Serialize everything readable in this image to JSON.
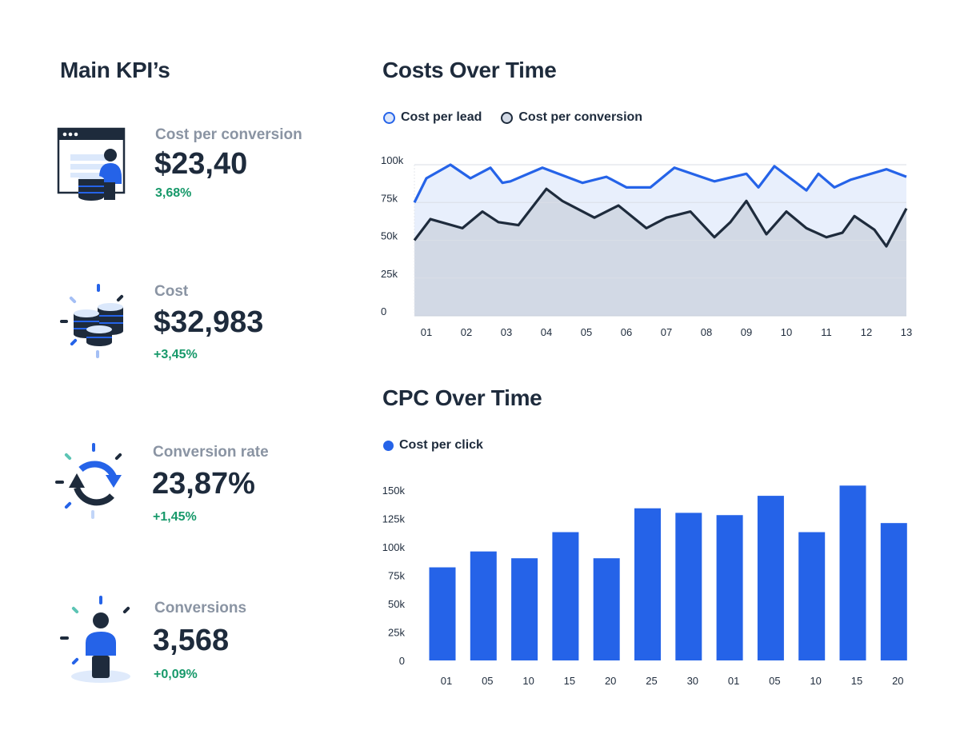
{
  "kpi_section": {
    "title": "Main KPI’s",
    "items": [
      {
        "label": "Cost per conversion",
        "value": "$23,40",
        "change": "3,68%",
        "icon": "browser-user-coins-icon"
      },
      {
        "label": "Cost",
        "value": "$32,983",
        "change": "+3,45%",
        "icon": "coin-stacks-icon"
      },
      {
        "label": "Conversion rate",
        "value": "23,87%",
        "change": "+1,45%",
        "icon": "refresh-cycle-icon"
      },
      {
        "label": "Conversions",
        "value": "3,568",
        "change": "+0,09%",
        "icon": "person-icon"
      }
    ]
  },
  "colors": {
    "primary_text": "#1e2b3c",
    "muted_text": "#8a94a3",
    "positive": "#17996a",
    "accent_blue": "#2563e8"
  },
  "chart_data": [
    {
      "type": "area",
      "title": "Costs Over Time",
      "legend_placement": "top-left",
      "grid": true,
      "xlim": [
        0.7,
        13
      ],
      "ylim": [
        0,
        100
      ],
      "x_ticks": [
        "01",
        "02",
        "03",
        "04",
        "05",
        "06",
        "07",
        "08",
        "09",
        "10",
        "11",
        "12",
        "13"
      ],
      "y_ticks": [
        "0",
        "25k",
        "50k",
        "75k",
        "100k"
      ],
      "series": [
        {
          "name": "Cost per lead",
          "color": "#2563e8",
          "fill": "#e8effc",
          "points": [
            [
              0.7,
              75
            ],
            [
              1.0,
              91
            ],
            [
              1.6,
              100
            ],
            [
              2.1,
              91
            ],
            [
              2.6,
              98
            ],
            [
              2.9,
              88
            ],
            [
              3.1,
              89
            ],
            [
              3.9,
              98
            ],
            [
              4.9,
              88
            ],
            [
              5.5,
              92
            ],
            [
              6.0,
              85
            ],
            [
              6.6,
              85
            ],
            [
              7.2,
              98
            ],
            [
              8.2,
              89
            ],
            [
              9.0,
              94
            ],
            [
              9.3,
              85
            ],
            [
              9.7,
              99
            ],
            [
              10.0,
              93
            ],
            [
              10.5,
              83
            ],
            [
              10.8,
              94
            ],
            [
              11.2,
              85
            ],
            [
              11.6,
              90
            ],
            [
              12.5,
              97
            ],
            [
              13.0,
              92
            ]
          ]
        },
        {
          "name": "Cost per conversion",
          "color": "#1e2b3c",
          "fill": "#d2d9e5",
          "points": [
            [
              0.7,
              50
            ],
            [
              1.1,
              64
            ],
            [
              1.9,
              58
            ],
            [
              2.4,
              69
            ],
            [
              2.8,
              62
            ],
            [
              3.3,
              60
            ],
            [
              4.0,
              84
            ],
            [
              4.4,
              76
            ],
            [
              5.2,
              65
            ],
            [
              5.8,
              73
            ],
            [
              6.5,
              58
            ],
            [
              7.0,
              65
            ],
            [
              7.6,
              69
            ],
            [
              8.2,
              52
            ],
            [
              8.6,
              62
            ],
            [
              9.0,
              76
            ],
            [
              9.5,
              54
            ],
            [
              10.0,
              69
            ],
            [
              10.5,
              58
            ],
            [
              11.0,
              52
            ],
            [
              11.4,
              55
            ],
            [
              11.7,
              66
            ],
            [
              12.2,
              57
            ],
            [
              12.5,
              46
            ],
            [
              13.0,
              71
            ]
          ]
        }
      ]
    },
    {
      "type": "bar",
      "title": "CPC Over Time",
      "legend_placement": "top-left",
      "grid": false,
      "ylim": [
        0,
        150
      ],
      "categories": [
        "01",
        "05",
        "10",
        "15",
        "20",
        "25",
        "30",
        "01",
        "05",
        "10",
        "15",
        "20"
      ],
      "y_ticks": [
        "0",
        "25k",
        "50k",
        "75k",
        "100k",
        "125k",
        "150k"
      ],
      "series": [
        {
          "name": "Cost per click",
          "color": "#2563e8",
          "values": [
            82,
            96,
            90,
            113,
            90,
            134,
            130,
            128,
            145,
            113,
            154,
            121
          ]
        }
      ]
    }
  ]
}
